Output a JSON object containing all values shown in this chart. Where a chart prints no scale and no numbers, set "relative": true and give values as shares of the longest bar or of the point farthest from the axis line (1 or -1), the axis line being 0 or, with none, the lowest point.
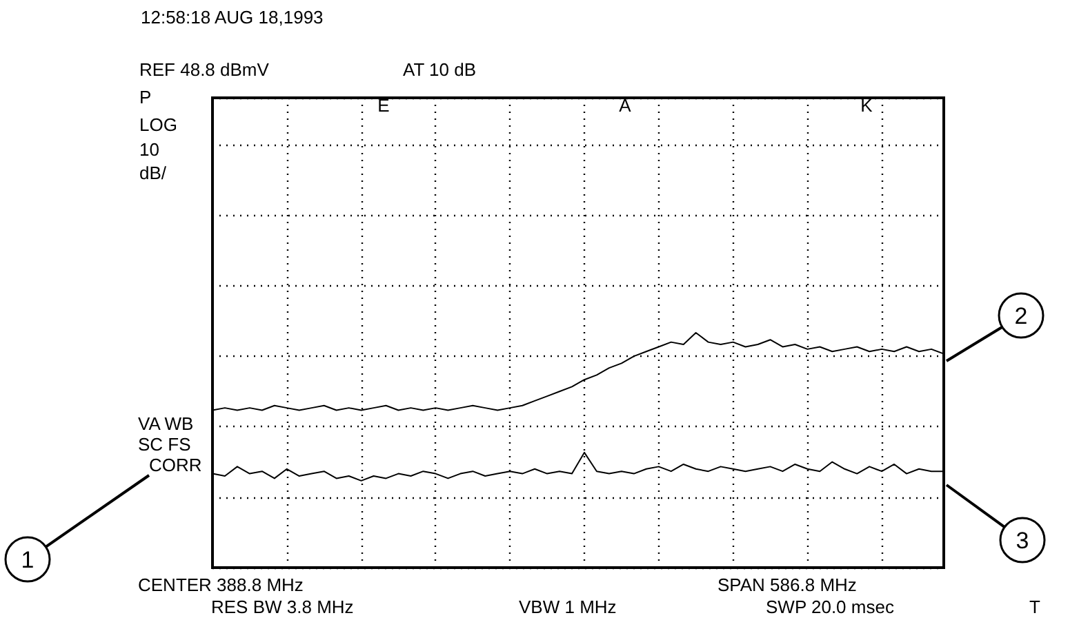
{
  "chart_data": {
    "type": "line",
    "relative": true,
    "grid": true,
    "categories": [
      null,
      null,
      null,
      null,
      null,
      null,
      null,
      null,
      null,
      null,
      null,
      null,
      null,
      null,
      null,
      null,
      null,
      null,
      null,
      null,
      null,
      null,
      null,
      null,
      null,
      null,
      null,
      null,
      null,
      null,
      null,
      null,
      null,
      null,
      null,
      null,
      null,
      null,
      null,
      null,
      null,
      null,
      null,
      null,
      null,
      null,
      null,
      null,
      null,
      null,
      null,
      null,
      null,
      null,
      null,
      null,
      null,
      null,
      null,
      null
    ],
    "series": [
      {
        "color": "#000000",
        "values": [
          0.67,
          0.68,
          0.67,
          0.68,
          0.67,
          0.69,
          0.68,
          0.67,
          0.68,
          0.69,
          0.67,
          0.68,
          0.67,
          0.68,
          0.69,
          0.67,
          0.68,
          0.67,
          0.68,
          0.67,
          0.68,
          0.69,
          0.68,
          0.67,
          0.68,
          0.69,
          0.71,
          0.73,
          0.75,
          0.77,
          0.8,
          0.82,
          0.85,
          0.87,
          0.9,
          0.92,
          0.94,
          0.96,
          0.95,
          1.0,
          0.96,
          0.95,
          0.96,
          0.94,
          0.95,
          0.97,
          0.94,
          0.95,
          0.93,
          0.94,
          0.92,
          0.93,
          0.94,
          0.92,
          0.93,
          0.92,
          0.94,
          0.92,
          0.93,
          0.91
        ]
      },
      {
        "color": "#000000",
        "values": [
          0.4,
          0.39,
          0.43,
          0.4,
          0.41,
          0.38,
          0.42,
          0.39,
          0.4,
          0.41,
          0.38,
          0.39,
          0.37,
          0.39,
          0.38,
          0.4,
          0.39,
          0.41,
          0.4,
          0.38,
          0.4,
          0.41,
          0.39,
          0.4,
          0.41,
          0.4,
          0.42,
          0.4,
          0.41,
          0.4,
          0.49,
          0.41,
          0.4,
          0.41,
          0.4,
          0.42,
          0.43,
          0.41,
          0.44,
          0.42,
          0.41,
          0.43,
          0.42,
          0.41,
          0.42,
          0.43,
          0.41,
          0.44,
          0.42,
          0.41,
          0.45,
          0.42,
          0.4,
          0.43,
          0.41,
          0.44,
          0.4,
          0.42,
          0.41,
          0.41
        ]
      }
    ],
    "annotations": [
      "12:58:18 AUG 18,1993",
      "REF 48.8 dBmV",
      "AT 10 dB",
      "P",
      "LOG",
      "10",
      "dB/",
      "E",
      "A",
      "K",
      "VA WB",
      "SC FS",
      "CORR",
      "CENTER 388.8 MHz",
      "RES BW 3.8 MHz",
      "VBW 1 MHz",
      "SPAN 586.8 MHz",
      "SWP 20.0 msec",
      "T",
      "1",
      "2",
      "3"
    ]
  }
}
